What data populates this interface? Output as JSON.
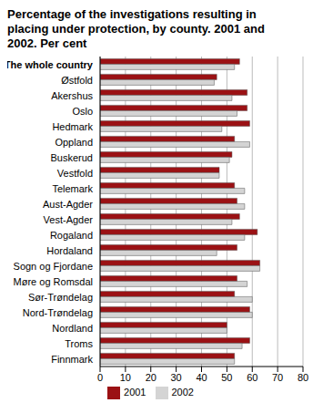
{
  "chart_data": {
    "type": "bar",
    "orientation": "horizontal",
    "title": "Percentage of the investigations resulting in placing under protection, by county. 2001 and 2002. Per cent",
    "categories": [
      "The whole country",
      "Østfold",
      "Akershus",
      "Oslo",
      "Hedmark",
      "Oppland",
      "Buskerud",
      "Vestfold",
      "Telemark",
      "Aust-Agder",
      "Vest-Agder",
      "Rogaland",
      "Hordaland",
      "Sogn og Fjordane",
      "Møre og Romsdal",
      "Sør-Trøndelag",
      "Nord-Trøndelag",
      "Nordland",
      "Troms",
      "Finnmark"
    ],
    "series": [
      {
        "name": "2001",
        "color": "#9b1114",
        "values": [
          55,
          46,
          58,
          58,
          59,
          53,
          52,
          47,
          53,
          54,
          55,
          62,
          54,
          63,
          54,
          53,
          59,
          50,
          59,
          53
        ]
      },
      {
        "name": "2002",
        "color": "#d4d4d4",
        "values": [
          53,
          45,
          52,
          54,
          48,
          59,
          51,
          47,
          57,
          57,
          52,
          57,
          46,
          63,
          58,
          60,
          60,
          50,
          56,
          53
        ]
      }
    ],
    "xlim": [
      0,
      80
    ],
    "xticks": [
      0,
      10,
      20,
      30,
      40,
      50,
      60,
      70,
      80
    ],
    "grid": true,
    "legend": "bottom"
  }
}
